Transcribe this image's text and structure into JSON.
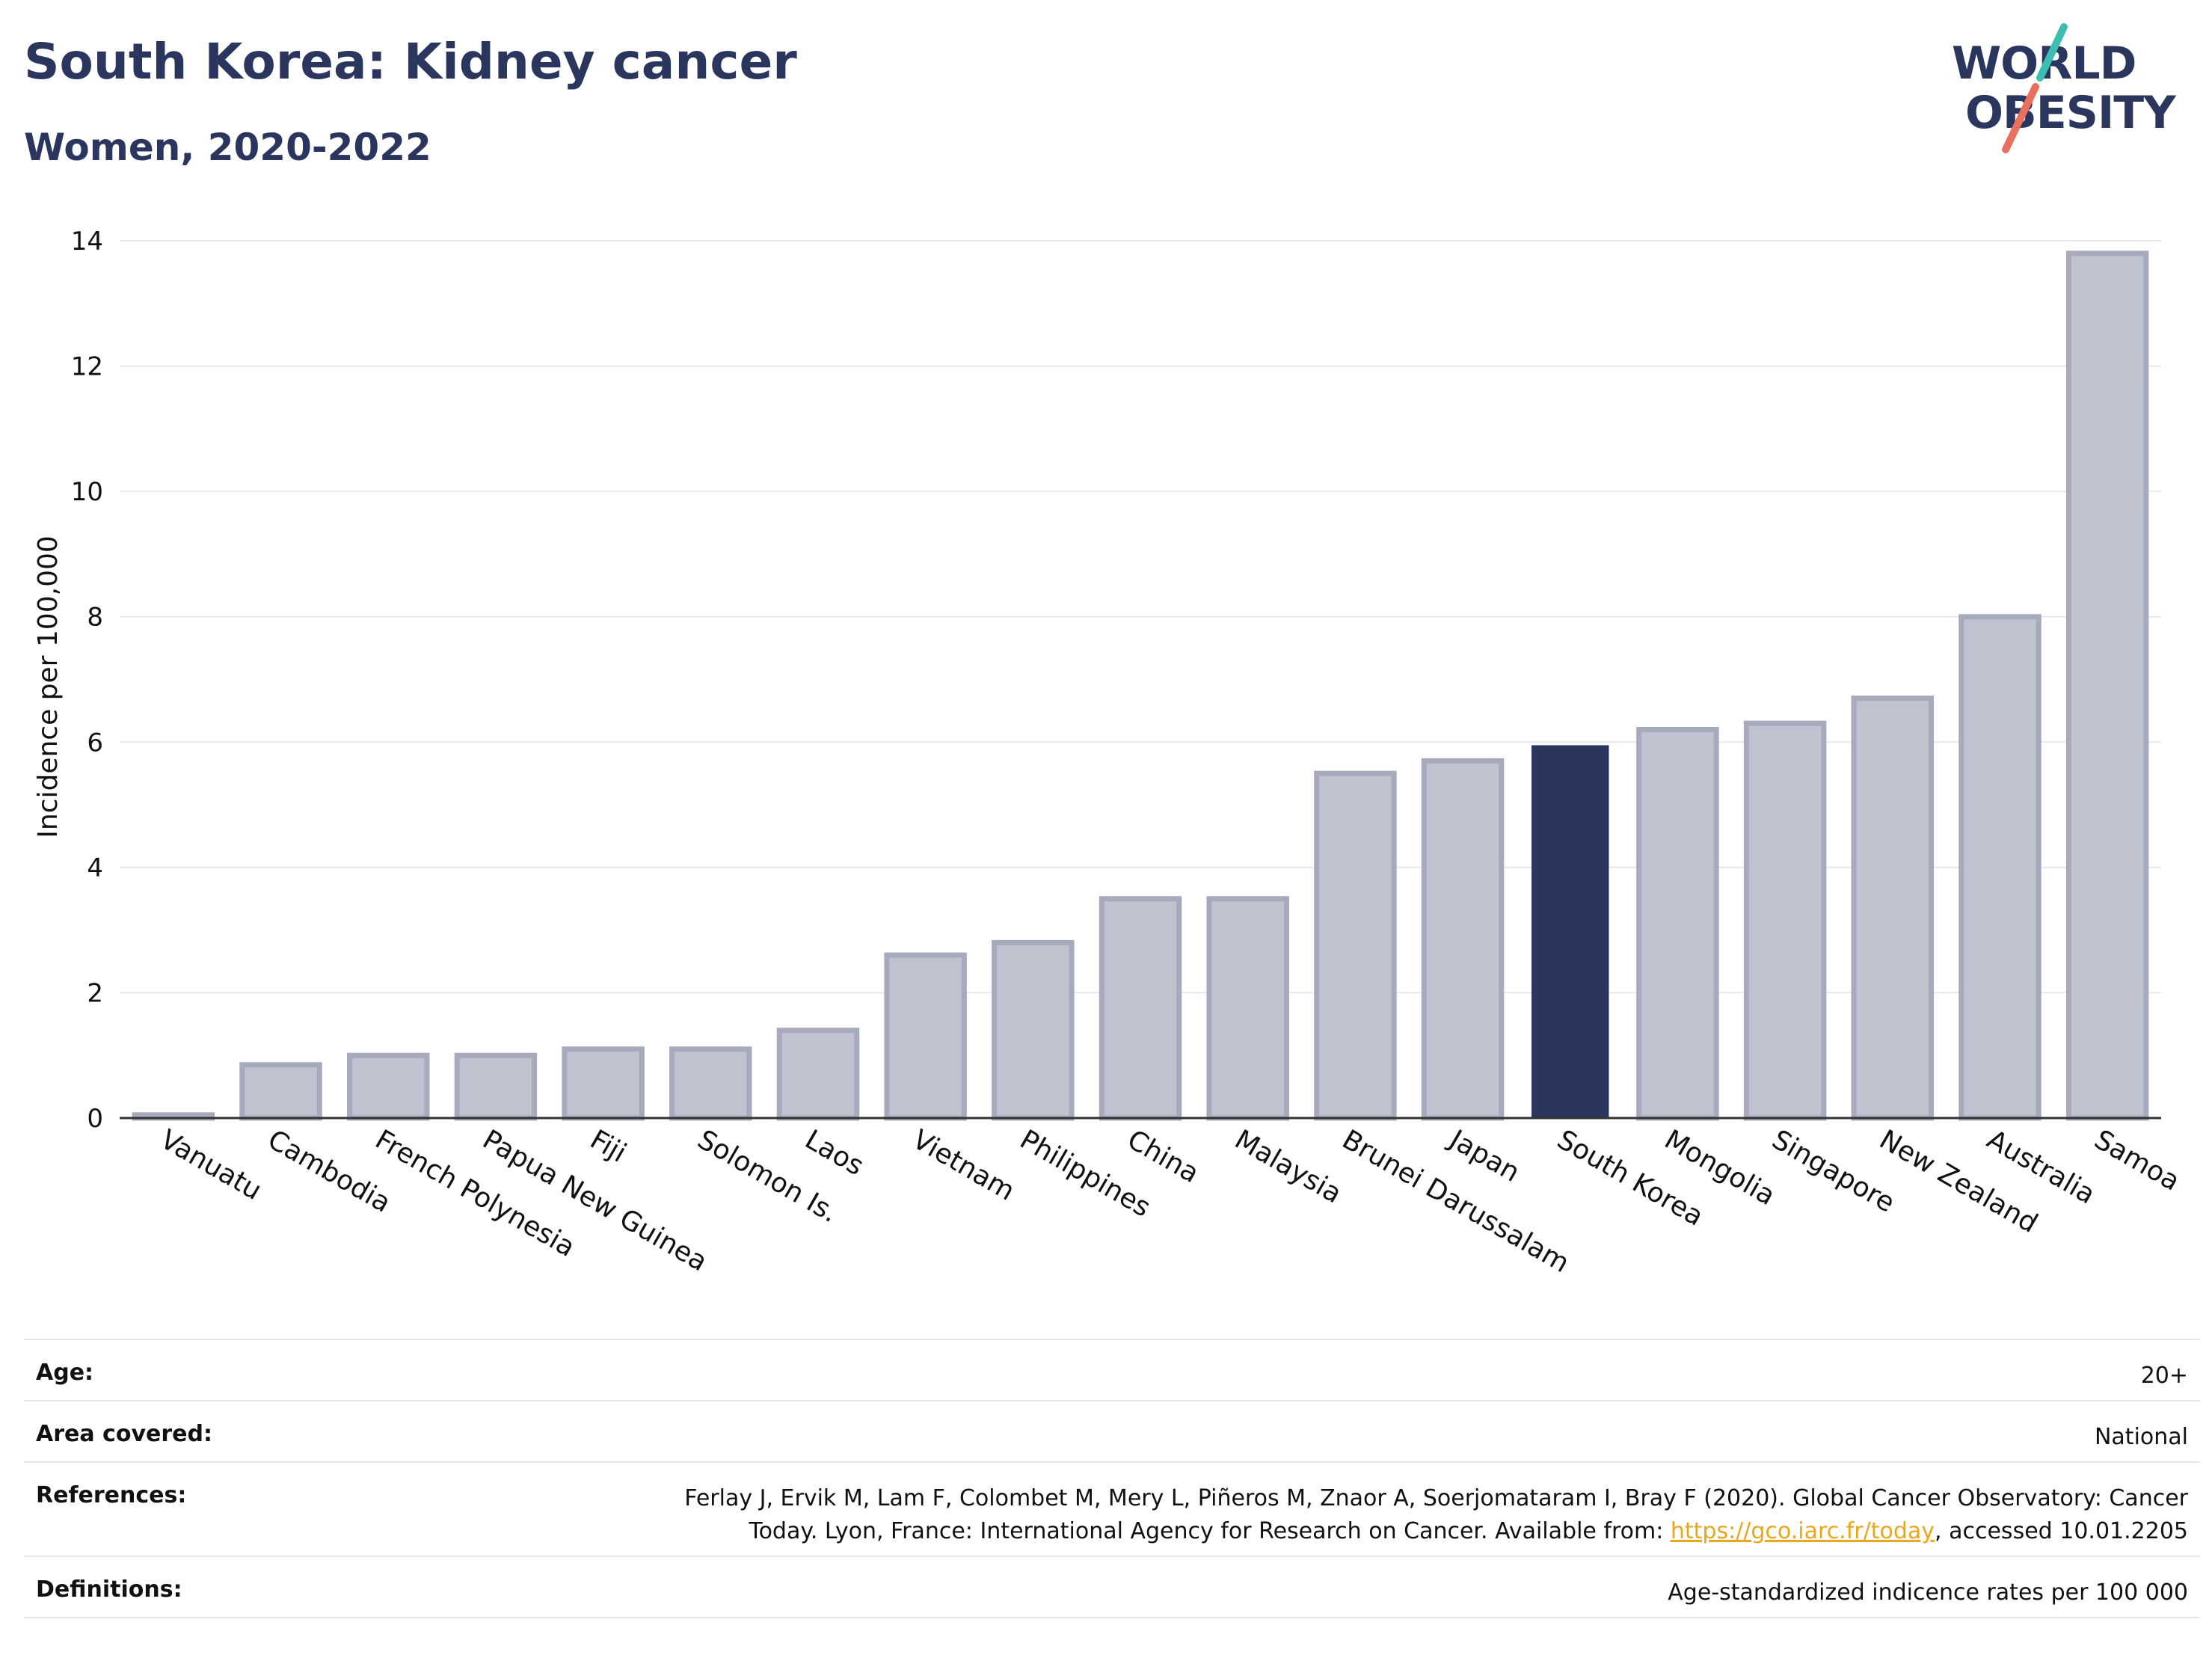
{
  "header": {
    "title": "South Korea: Kidney cancer",
    "subtitle": "Women, 2020-2022"
  },
  "logo": {
    "line1": "WORLD",
    "line2": "OBESITY"
  },
  "colors": {
    "title": "#2b365f",
    "bar_default": "#bfc3d0",
    "bar_default_border": "#a5aabd",
    "bar_highlight": "#2b365f",
    "logo_teal": "#3ebdb3",
    "logo_coral": "#e8705d"
  },
  "chart_data": {
    "type": "bar",
    "categories": [
      "Vanuatu",
      "Cambodia",
      "French Polynesia",
      "Papua New Guinea",
      "Fiji",
      "Solomon Is.",
      "Laos",
      "Vietnam",
      "Philippines",
      "China",
      "Malaysia",
      "Brunei Darussalam",
      "Japan",
      "South Korea",
      "Mongolia",
      "Singapore",
      "New Zealand",
      "Australia",
      "Samoa"
    ],
    "values": [
      0.05,
      0.85,
      1.0,
      1.0,
      1.1,
      1.1,
      1.4,
      2.6,
      2.8,
      3.5,
      3.5,
      5.5,
      5.7,
      5.95,
      6.2,
      6.3,
      6.7,
      8.0,
      13.8
    ],
    "highlight": "South Korea",
    "ylabel": "Incidence per 100,000",
    "xlabel": "",
    "ylim": [
      0,
      14
    ],
    "yticks": [
      0,
      2,
      4,
      6,
      8,
      10,
      12,
      14
    ],
    "grid": true
  },
  "info": {
    "age_label": "Age:",
    "age_value": "20+",
    "area_label": "Area covered:",
    "area_value": "National",
    "references_label": "References:",
    "references_text_1": "Ferlay J, Ervik M, Lam F, Colombet M, Mery L, Piñeros M, Znaor A, Soerjomataram I, Bray F (2020). Global Cancer Observatory: Cancer",
    "references_text_2": "Today. Lyon, France: International Agency for Research on Cancer. Available from: ",
    "references_link": "https://gco.iarc.fr/today",
    "references_text_3": ", accessed 10.01.2205",
    "definitions_label": "Definitions:",
    "definitions_value": "Age-standardized indicence rates per 100 000"
  }
}
